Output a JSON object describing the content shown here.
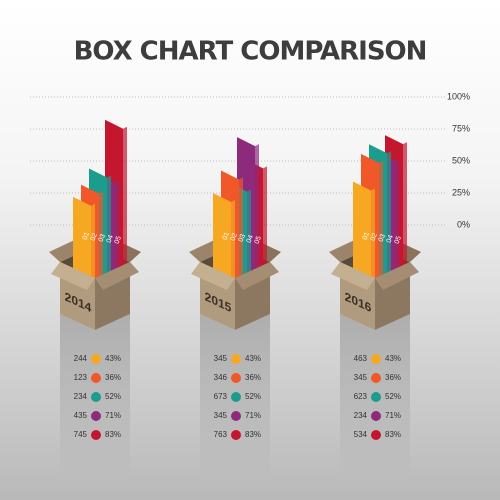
{
  "title": "BOX CHART COMPARISON",
  "axis": {
    "ticks": [
      {
        "value": 100,
        "label": "100%"
      },
      {
        "value": 75,
        "label": "75%"
      },
      {
        "value": 50,
        "label": "50%"
      },
      {
        "value": 25,
        "label": "25%"
      },
      {
        "value": 0,
        "label": "0%"
      }
    ],
    "lim": [
      0,
      100
    ]
  },
  "colors": [
    "#f7a823",
    "#f0582a",
    "#1b9c8c",
    "#8e2a7c",
    "#c4172f"
  ],
  "boxes": [
    {
      "label": "2014",
      "bars": [
        {
          "label": "01",
          "value": 22
        },
        {
          "label": "02",
          "value": 30
        },
        {
          "label": "03",
          "value": 41
        },
        {
          "label": "04",
          "value": 35
        },
        {
          "label": "05",
          "value": 76
        }
      ],
      "rows": [
        {
          "number": 244,
          "percent": {
            "value": 43,
            "label": "43%"
          }
        },
        {
          "number": 123,
          "percent": {
            "value": 36,
            "label": "36%"
          }
        },
        {
          "number": 234,
          "percent": {
            "value": 52,
            "label": "52%"
          }
        },
        {
          "number": 435,
          "percent": {
            "value": 71,
            "label": "71%"
          }
        },
        {
          "number": 745,
          "percent": {
            "value": 83,
            "label": "83%"
          }
        }
      ]
    },
    {
      "label": "2015",
      "bars": [
        {
          "label": "01",
          "value": 25
        },
        {
          "label": "02",
          "value": 41
        },
        {
          "label": "03",
          "value": 30
        },
        {
          "label": "04",
          "value": 64
        },
        {
          "label": "05",
          "value": 45
        }
      ],
      "rows": [
        {
          "number": 345,
          "percent": {
            "value": 43,
            "label": "43%"
          }
        },
        {
          "number": 346,
          "percent": {
            "value": 36,
            "label": "36%"
          }
        },
        {
          "number": 673,
          "percent": {
            "value": 52,
            "label": "52%"
          }
        },
        {
          "number": 345,
          "percent": {
            "value": 71,
            "label": "71%"
          }
        },
        {
          "number": 763,
          "percent": {
            "value": 83,
            "label": "83%"
          }
        }
      ]
    },
    {
      "label": "2016",
      "bars": [
        {
          "label": "01",
          "value": 34
        },
        {
          "label": "02",
          "value": 54
        },
        {
          "label": "03",
          "value": 60
        },
        {
          "label": "04",
          "value": 52
        },
        {
          "label": "05",
          "value": 64
        }
      ],
      "rows": [
        {
          "number": 463,
          "percent": {
            "value": 43,
            "label": "43%"
          }
        },
        {
          "number": 345,
          "percent": {
            "value": 36,
            "label": "36%"
          }
        },
        {
          "number": 623,
          "percent": {
            "value": 52,
            "label": "52%"
          }
        },
        {
          "number": 234,
          "percent": {
            "value": 71,
            "label": "71%"
          }
        },
        {
          "number": 534,
          "percent": {
            "value": 83,
            "label": "83%"
          }
        }
      ]
    }
  ]
}
